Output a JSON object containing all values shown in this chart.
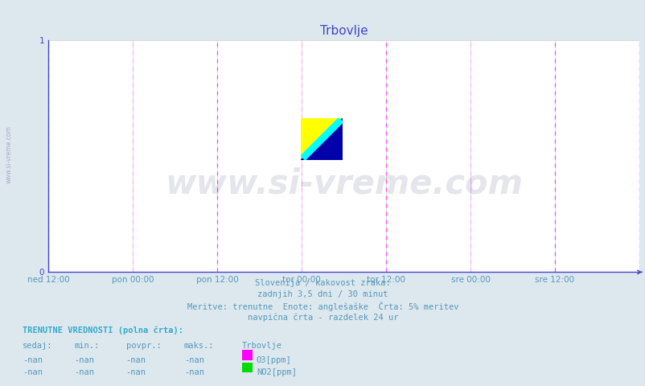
{
  "title": "Trbovlje",
  "title_color": "#4444cc",
  "bg_color": "#dde8ee",
  "plot_bg_color": "#ffffff",
  "axis_color": "#4444cc",
  "grid_color": "#cccccc",
  "ylim": [
    0,
    1
  ],
  "yticks": [
    0,
    1
  ],
  "xtick_labels": [
    "ned 12:00",
    "pon 00:00",
    "pon 12:00",
    "tor 00:00",
    "tor 12:00",
    "sre 00:00",
    "sre 12:00"
  ],
  "vline_major_color": "#ff44ff",
  "vline_minor_color": "#ffaaff",
  "subtitle_lines": [
    "Slovenija / kakovost zraka.",
    "zadnjih 3,5 dni / 30 minut",
    "Meritve: trenutne  Enote: anglešaške  Črta: 5% meritev",
    "navpična črta - razdelek 24 ur"
  ],
  "subtitle_color": "#5599bb",
  "footer_label": "TRENUTNE VREDNOSTI (polna črta):",
  "footer_color": "#5599bb",
  "col_headers": [
    "sedaj:",
    "min.:",
    "povpr.:",
    "maks.:",
    "Trbovlje"
  ],
  "row1": [
    "-nan",
    "-nan",
    "-nan",
    "-nan"
  ],
  "row2": [
    "-nan",
    "-nan",
    "-nan",
    "-nan"
  ],
  "legend_items": [
    {
      "label": "O3[ppm]",
      "color": "#ff00ff"
    },
    {
      "label": "NO2[ppm]",
      "color": "#00dd00"
    }
  ],
  "watermark_text": "www.si-vreme.com",
  "watermark_color": "#223366",
  "watermark_alpha": 0.12
}
